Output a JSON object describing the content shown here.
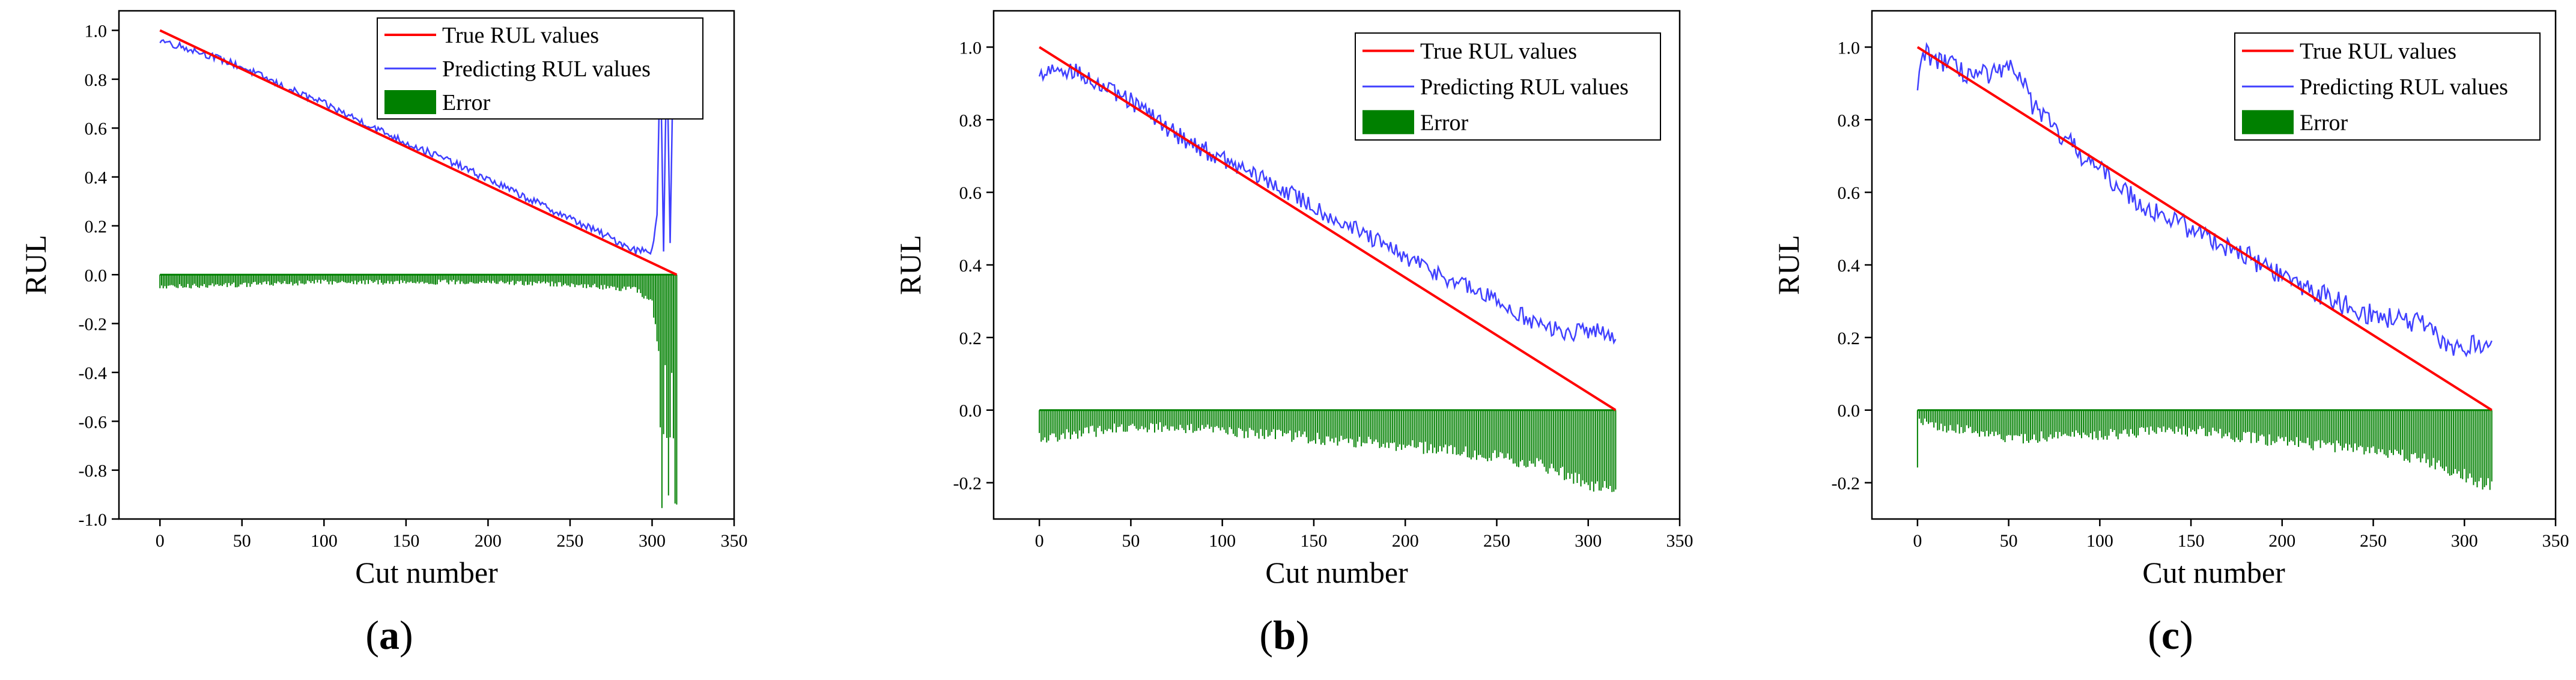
{
  "chart_data": [
    {
      "type": "line",
      "panel": "a",
      "caption": "(a)",
      "xlabel": "Cut number",
      "ylabel": "RUL",
      "xlim": [
        -25,
        350
      ],
      "ylim": [
        -1.0,
        1.08
      ],
      "xticks": [
        0,
        50,
        100,
        150,
        200,
        250,
        300,
        350
      ],
      "yticks": [
        -1.0,
        -0.8,
        -0.6,
        -0.4,
        -0.2,
        0.0,
        0.2,
        0.4,
        0.6,
        0.8,
        1.0
      ],
      "n_cuts": 315,
      "legend": {
        "position": "top-right",
        "entries": [
          {
            "label": "True RUL values",
            "color": "#ff0000",
            "kind": "line"
          },
          {
            "label": "Predicting RUL values",
            "color": "#4040ff",
            "kind": "line"
          },
          {
            "label": "Error",
            "color": "#008000",
            "kind": "bar"
          }
        ]
      },
      "series": [
        {
          "name": "True RUL values",
          "color": "#ff0000",
          "x": [
            0,
            315
          ],
          "y": [
            1.0,
            0.0
          ]
        },
        {
          "name": "Predicting RUL values",
          "color": "#4040ff",
          "x": [
            0,
            25,
            50,
            75,
            100,
            125,
            150,
            175,
            200,
            225,
            250,
            275,
            290,
            300,
            303,
            305,
            307,
            309,
            311,
            313,
            315
          ],
          "y": [
            0.96,
            0.91,
            0.85,
            0.77,
            0.7,
            0.62,
            0.54,
            0.47,
            0.39,
            0.31,
            0.23,
            0.15,
            0.1,
            0.1,
            0.25,
            0.92,
            0.1,
            0.93,
            0.12,
            0.92,
            0.9
          ],
          "noise": 0.015
        },
        {
          "name": "Error",
          "color": "#008000",
          "kind": "bar",
          "x": [
            0,
            50,
            100,
            150,
            200,
            250,
            290,
            300,
            304,
            306,
            308,
            310,
            312,
            314,
            315
          ],
          "y": [
            -0.04,
            -0.03,
            -0.02,
            -0.02,
            -0.02,
            -0.03,
            -0.05,
            -0.1,
            -0.3,
            -0.9,
            -0.35,
            -0.9,
            -0.4,
            -0.91,
            -0.9
          ],
          "noise": 0.02
        }
      ]
    },
    {
      "type": "line",
      "panel": "b",
      "caption": "(b)",
      "xlabel": "Cut number",
      "ylabel": "RUL",
      "xlim": [
        -25,
        350
      ],
      "ylim": [
        -0.3,
        1.1
      ],
      "xticks": [
        0,
        50,
        100,
        150,
        200,
        250,
        300,
        350
      ],
      "yticks": [
        -0.2,
        0.0,
        0.2,
        0.4,
        0.6,
        0.8,
        1.0
      ],
      "n_cuts": 315,
      "legend": {
        "position": "top-right",
        "entries": [
          {
            "label": "True RUL values",
            "color": "#ff0000",
            "kind": "line"
          },
          {
            "label": "Predicting RUL values",
            "color": "#4040ff",
            "kind": "line"
          },
          {
            "label": "Error",
            "color": "#008000",
            "kind": "bar"
          }
        ]
      },
      "series": [
        {
          "name": "True RUL values",
          "color": "#ff0000",
          "x": [
            0,
            315
          ],
          "y": [
            1.0,
            0.0
          ]
        },
        {
          "name": "Predicting RUL values",
          "color": "#4040ff",
          "x": [
            0,
            10,
            20,
            30,
            50,
            75,
            100,
            125,
            150,
            175,
            200,
            225,
            250,
            275,
            290,
            300,
            315
          ],
          "y": [
            0.92,
            0.95,
            0.93,
            0.9,
            0.85,
            0.76,
            0.69,
            0.63,
            0.56,
            0.49,
            0.42,
            0.36,
            0.3,
            0.23,
            0.21,
            0.22,
            0.21
          ],
          "noise": 0.025
        },
        {
          "name": "Error",
          "color": "#008000",
          "kind": "bar",
          "x": [
            0,
            50,
            100,
            150,
            200,
            250,
            280,
            300,
            315
          ],
          "y": [
            -0.06,
            -0.03,
            -0.04,
            -0.06,
            -0.08,
            -0.11,
            -0.14,
            -0.18,
            -0.2
          ],
          "noise": 0.03
        }
      ]
    },
    {
      "type": "line",
      "panel": "c",
      "caption": "(c)",
      "xlabel": "Cut number",
      "ylabel": "RUL",
      "xlim": [
        -25,
        350
      ],
      "ylim": [
        -0.3,
        1.1
      ],
      "xticks": [
        0,
        50,
        100,
        150,
        200,
        250,
        300,
        350
      ],
      "yticks": [
        -0.2,
        0.0,
        0.2,
        0.4,
        0.6,
        0.8,
        1.0
      ],
      "n_cuts": 315,
      "legend": {
        "position": "top-right",
        "entries": [
          {
            "label": "True RUL values",
            "color": "#ff0000",
            "kind": "line"
          },
          {
            "label": "Predicting RUL values",
            "color": "#4040ff",
            "kind": "line"
          },
          {
            "label": "Error",
            "color": "#008000",
            "kind": "bar"
          }
        ]
      },
      "series": [
        {
          "name": "True RUL values",
          "color": "#ff0000",
          "x": [
            0,
            315
          ],
          "y": [
            1.0,
            0.0
          ]
        },
        {
          "name": "Predicting RUL values",
          "color": "#4040ff",
          "x": [
            0,
            3,
            10,
            25,
            40,
            55,
            62,
            75,
            100,
            125,
            150,
            175,
            200,
            225,
            250,
            275,
            290,
            300,
            315
          ],
          "y": [
            0.86,
            0.99,
            0.97,
            0.93,
            0.92,
            0.94,
            0.85,
            0.77,
            0.66,
            0.56,
            0.5,
            0.44,
            0.37,
            0.31,
            0.26,
            0.24,
            0.18,
            0.17,
            0.19
          ],
          "noise": 0.03
        },
        {
          "name": "Error",
          "color": "#008000",
          "kind": "bar",
          "x": [
            0,
            1,
            3,
            50,
            100,
            150,
            200,
            250,
            280,
            300,
            315
          ],
          "y": [
            -0.14,
            -0.01,
            -0.02,
            -0.06,
            -0.05,
            -0.04,
            -0.07,
            -0.09,
            -0.12,
            -0.16,
            -0.19
          ],
          "noise": 0.03
        }
      ]
    }
  ]
}
